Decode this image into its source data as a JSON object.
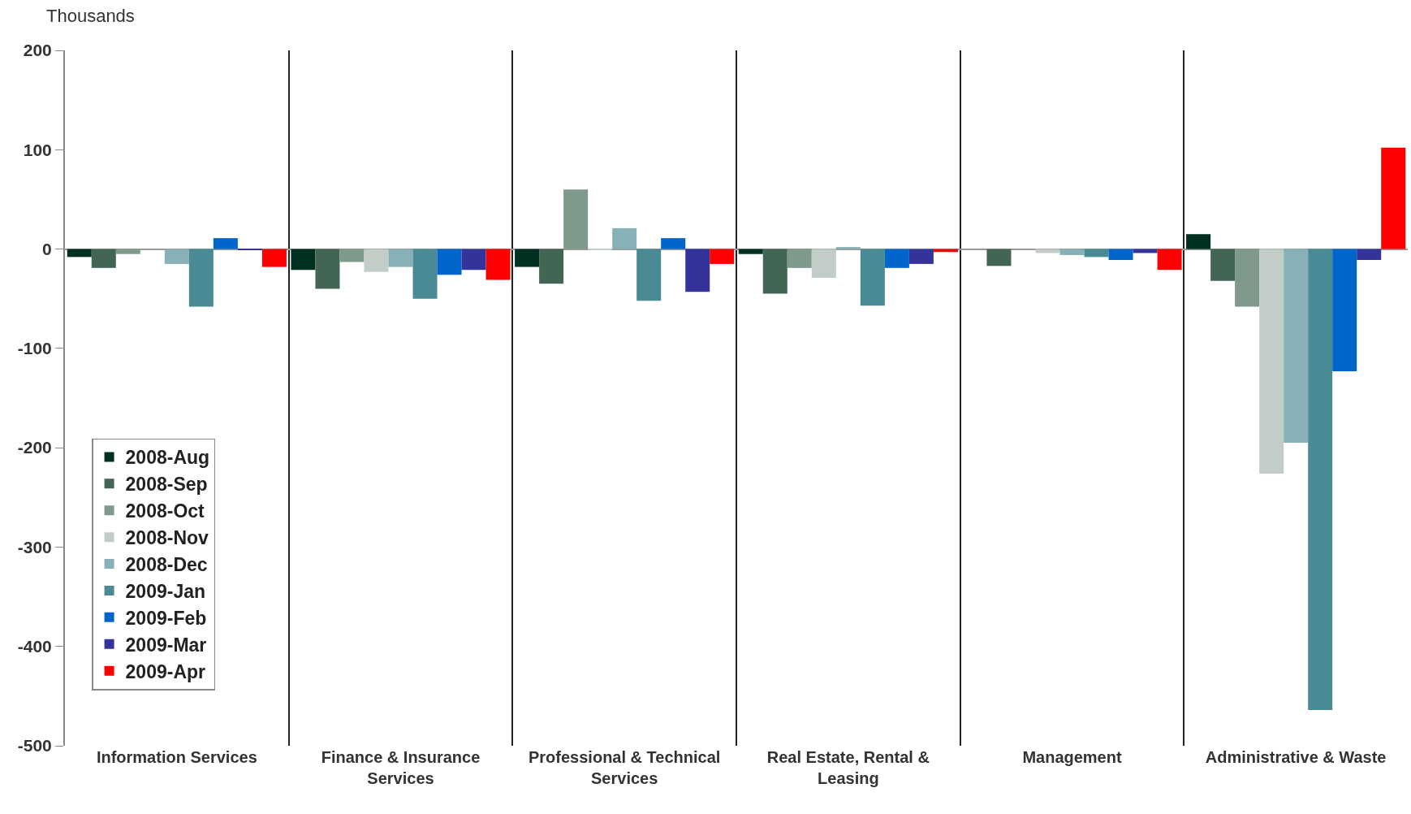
{
  "chart_data": {
    "type": "bar",
    "ylabel": "Thousands",
    "categories": [
      "Information Services",
      "Finance & Insurance Services",
      "Professional & Technical Services",
      "Real Estate, Rental & Leasing",
      "Management",
      "Administrative & Waste"
    ],
    "series": [
      {
        "name": "2008-Aug",
        "color": "#003020",
        "values": [
          -8,
          -21,
          -18,
          -5,
          0,
          15
        ]
      },
      {
        "name": "2008-Sep",
        "color": "#436654",
        "values": [
          -19,
          -40,
          -35,
          -45,
          -17,
          -32
        ]
      },
      {
        "name": "2008-Oct",
        "color": "#7f9a8a",
        "values": [
          -5,
          -13,
          60,
          -19,
          0,
          -58
        ]
      },
      {
        "name": "2008-Nov",
        "color": "#c3cdc7",
        "values": [
          0,
          -23,
          -1,
          -29,
          -4,
          -226
        ]
      },
      {
        "name": "2008-Dec",
        "color": "#87b0b7",
        "values": [
          -15,
          -18,
          21,
          2,
          -6,
          -195
        ]
      },
      {
        "name": "2009-Jan",
        "color": "#4a8a94",
        "values": [
          -58,
          -50,
          -52,
          -57,
          -8,
          -464
        ]
      },
      {
        "name": "2009-Feb",
        "color": "#0066cc",
        "values": [
          11,
          -26,
          11,
          -19,
          -11,
          -123
        ]
      },
      {
        "name": "2009-Mar",
        "color": "#333399",
        "values": [
          -1,
          -21,
          -43,
          -15,
          -4,
          -11
        ]
      },
      {
        "name": "2009-Apr",
        "color": "#ff0000",
        "values": [
          -18,
          -31,
          -15,
          -3,
          -21,
          102
        ]
      }
    ],
    "ylim": [
      -500,
      200
    ],
    "yticks": [
      -500,
      -400,
      -300,
      -200,
      -100,
      0,
      100,
      200
    ],
    "grid": "x",
    "legend": "bottom left"
  }
}
